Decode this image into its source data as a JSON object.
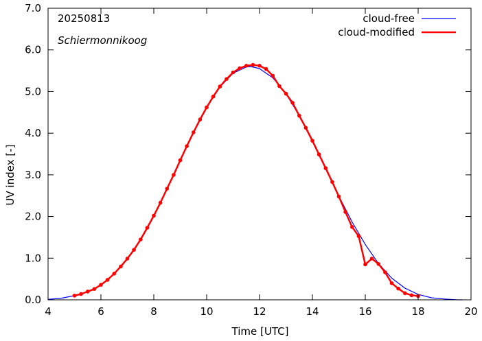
{
  "chart_data": {
    "type": "line",
    "title": "",
    "xlabel": "Time  [UTC]",
    "ylabel": "UV index  [-]",
    "xlim": [
      4,
      20
    ],
    "ylim": [
      0,
      7
    ],
    "x_ticks": [
      4,
      6,
      8,
      10,
      12,
      14,
      16,
      18,
      20
    ],
    "y_ticks": [
      0,
      1,
      2,
      3,
      4,
      5,
      6,
      7
    ],
    "x_tick_labels": [
      "4",
      "6",
      "8",
      "10",
      "12",
      "14",
      "16",
      "18",
      "20"
    ],
    "y_tick_labels": [
      "0.0",
      "1.0",
      "2.0",
      "3.0",
      "4.0",
      "5.0",
      "6.0",
      "7.0"
    ],
    "grid": false,
    "legend_position": "top-right",
    "annotations": [
      "20250813",
      "Schiermonnikoog"
    ],
    "series": [
      {
        "name": "cloud-free",
        "color": "#0000ff",
        "markers": false,
        "x": [
          4.0,
          4.5,
          5.0,
          5.5,
          6.0,
          6.5,
          7.0,
          7.5,
          8.0,
          8.5,
          9.0,
          9.5,
          10.0,
          10.5,
          11.0,
          11.5,
          11.667,
          12.0,
          12.5,
          13.0,
          13.5,
          14.0,
          14.5,
          15.0,
          15.5,
          16.0,
          16.5,
          17.0,
          17.5,
          18.0,
          18.5,
          19.0,
          19.5,
          19.67
        ],
        "y": [
          0.01,
          0.04,
          0.1,
          0.19,
          0.36,
          0.62,
          0.97,
          1.43,
          2.01,
          2.67,
          3.35,
          4.03,
          4.62,
          5.11,
          5.44,
          5.59,
          5.6,
          5.55,
          5.33,
          4.95,
          4.42,
          3.8,
          3.14,
          2.49,
          1.87,
          1.33,
          0.87,
          0.52,
          0.28,
          0.13,
          0.05,
          0.02,
          0.0,
          0.0
        ]
      },
      {
        "name": "cloud-modified",
        "color": "#ff0000",
        "markers": true,
        "x": [
          5.0,
          5.25,
          5.5,
          5.75,
          6.0,
          6.25,
          6.5,
          6.75,
          7.0,
          7.25,
          7.5,
          7.75,
          8.0,
          8.25,
          8.5,
          8.75,
          9.0,
          9.25,
          9.5,
          9.75,
          10.0,
          10.25,
          10.5,
          10.75,
          11.0,
          11.25,
          11.5,
          11.75,
          12.0,
          12.25,
          12.5,
          12.75,
          13.0,
          13.25,
          13.5,
          13.75,
          14.0,
          14.25,
          14.5,
          14.75,
          15.0,
          15.25,
          15.5,
          15.75,
          16.0,
          16.25,
          16.5,
          16.75,
          17.0,
          17.25,
          17.5,
          17.75,
          18.0
        ],
        "y": [
          0.1,
          0.14,
          0.2,
          0.26,
          0.36,
          0.48,
          0.63,
          0.8,
          0.99,
          1.2,
          1.45,
          1.73,
          2.02,
          2.33,
          2.67,
          3.0,
          3.35,
          3.69,
          4.02,
          4.33,
          4.62,
          4.88,
          5.12,
          5.3,
          5.46,
          5.56,
          5.62,
          5.64,
          5.62,
          5.54,
          5.38,
          5.13,
          4.95,
          4.73,
          4.42,
          4.13,
          3.82,
          3.49,
          3.16,
          2.83,
          2.48,
          2.11,
          1.75,
          1.53,
          0.85,
          0.99,
          0.86,
          0.66,
          0.4,
          0.27,
          0.16,
          0.11,
          0.09
        ]
      }
    ]
  }
}
